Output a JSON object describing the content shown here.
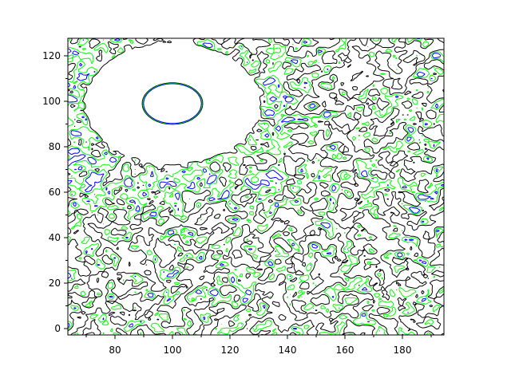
{
  "chart_data": {
    "type": "contour",
    "title": "",
    "xlabel": "",
    "ylabel": "",
    "xlim": [
      64,
      194
    ],
    "ylim": [
      -3,
      128
    ],
    "xticks": [
      "80",
      "100",
      "120",
      "140",
      "160",
      "180"
    ],
    "xtick_values": [
      80,
      100,
      120,
      140,
      160,
      180
    ],
    "yticks": [
      "0",
      "20",
      "40",
      "60",
      "80",
      "100",
      "120"
    ],
    "ytick_values": [
      0,
      20,
      40,
      60,
      80,
      100,
      120
    ],
    "grid": false,
    "legend": "none",
    "contour_levels": [
      {
        "level": "low",
        "color": "#000000"
      },
      {
        "level": "mid",
        "color": "#00ff00"
      },
      {
        "level": "high",
        "color": "#0000ff"
      }
    ],
    "features": {
      "blank_ring_center": [
        100,
        100
      ],
      "blank_ring_outer_radius": 25,
      "closed_contour_center": [
        102,
        99
      ],
      "closed_contour_radius": 8
    }
  }
}
